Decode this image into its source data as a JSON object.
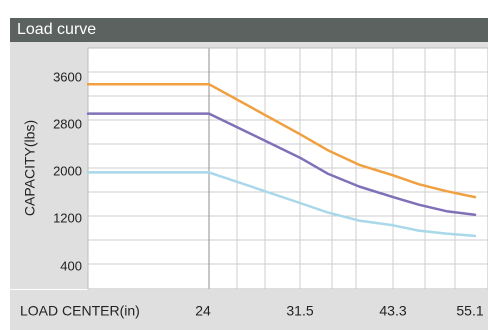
{
  "panel": {
    "title": "Load curve"
  },
  "chart_data": {
    "type": "line",
    "title": "Load curve",
    "xlabel": "LOAD CENTER(in)",
    "ylabel": "CAPACITY(lbs)",
    "x_ticks": [
      "24",
      "31.5",
      "43.3",
      "55.1"
    ],
    "y_ticks": [
      "3600",
      "2800",
      "2000",
      "1200",
      "400"
    ],
    "ylim": [
      0,
      4000
    ],
    "grid": true,
    "legend": "none",
    "x": [
      18,
      24,
      31.5,
      35,
      39,
      43.3,
      47,
      51,
      55.1
    ],
    "series": [
      {
        "color": "#f0a040",
        "values": [
          3500,
          3500,
          2650,
          2380,
          2130,
          1950,
          1800,
          1680,
          1580
        ]
      },
      {
        "color": "#8070b8",
        "values": [
          3000,
          3000,
          2250,
          1980,
          1760,
          1580,
          1450,
          1340,
          1280
        ]
      },
      {
        "color": "#a8d8ea",
        "values": [
          2000,
          2000,
          1480,
          1320,
          1180,
          1100,
          1010,
          960,
          920
        ]
      }
    ]
  }
}
